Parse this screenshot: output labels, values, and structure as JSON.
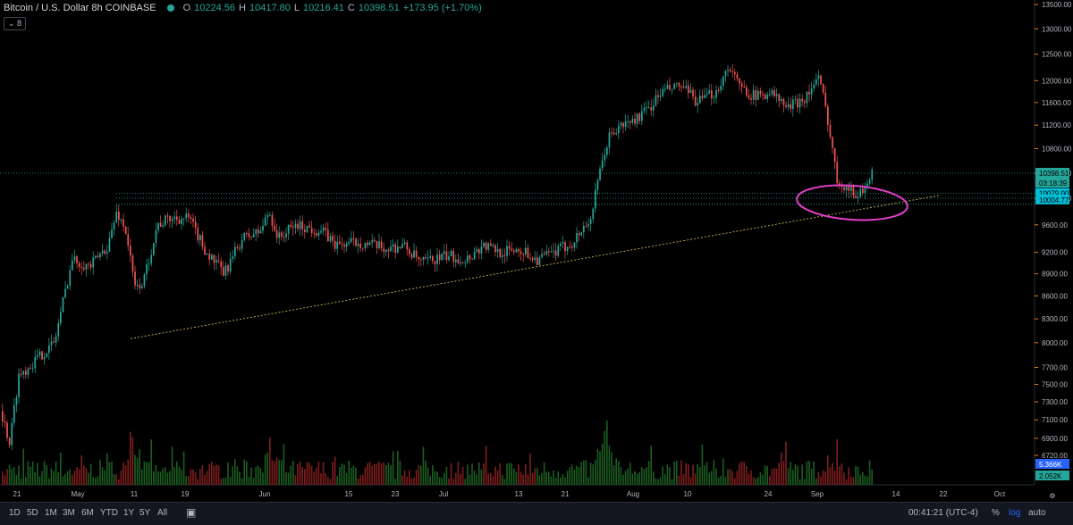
{
  "header": {
    "title": "Bitcoin / U.S. Dollar  8h  COINBASE",
    "open_label": "O",
    "open": "10224.56",
    "high_label": "H",
    "high": "10417.80",
    "low_label": "L",
    "low": "10216.41",
    "close_label": "C",
    "close": "10398.51",
    "change": "+173.95 (+1.70%)",
    "indicator_toggle": "8"
  },
  "price_labels": {
    "last_price": "10398.51",
    "countdown": "03:18:39",
    "level_a": "10079.00",
    "level_b": "10004.77",
    "volume_a": "5.366K",
    "volume_b": "2.052K"
  },
  "colors": {
    "up": "#26a69a",
    "down": "#ef5350",
    "vol_up": "#1b5e20",
    "vol_down": "#7f1d1d",
    "trendline": "#c9b458",
    "annotation": "#e040c8",
    "level": "#26a69a"
  },
  "toolbar": {
    "ranges": [
      "1D",
      "5D",
      "1M",
      "3M",
      "6M",
      "YTD",
      "1Y",
      "5Y",
      "All"
    ],
    "clock": "00:41:21 (UTC-4)",
    "percent": "%",
    "log": "log",
    "auto": "auto"
  },
  "chart_data": {
    "type": "candlestick",
    "symbol": "Bitcoin / U.S. Dollar",
    "interval": "8h",
    "exchange": "COINBASE",
    "x_ticks": [
      "21",
      "May",
      "11",
      "19",
      "Jun",
      "15",
      "23",
      "Jul",
      "13",
      "21",
      "Aug",
      "10",
      "24",
      "Sep",
      "14",
      "22",
      "Oct"
    ],
    "y_ticks": [
      6720,
      6900,
      7100,
      7300,
      7500,
      7700,
      8000,
      8300,
      8600,
      8900,
      9200,
      9600,
      10000,
      10400,
      10800,
      11200,
      11600,
      12000,
      12500,
      13000,
      13500
    ],
    "ylim": [
      6700,
      13600
    ],
    "y_scale": "log",
    "series": [
      {
        "name": "price_path",
        "points": [
          [
            0,
            7200
          ],
          [
            10,
            6850
          ],
          [
            20,
            7600
          ],
          [
            40,
            7800
          ],
          [
            60,
            8000
          ],
          [
            80,
            9100
          ],
          [
            100,
            9000
          ],
          [
            120,
            9300
          ],
          [
            130,
            9800
          ],
          [
            140,
            9500
          ],
          [
            150,
            8700
          ],
          [
            160,
            8800
          ],
          [
            175,
            9600
          ],
          [
            190,
            9700
          ],
          [
            210,
            9700
          ],
          [
            230,
            9200
          ],
          [
            250,
            8900
          ],
          [
            270,
            9400
          ],
          [
            290,
            9500
          ],
          [
            300,
            9800
          ],
          [
            310,
            9400
          ],
          [
            330,
            9600
          ],
          [
            360,
            9500
          ],
          [
            375,
            9300
          ],
          [
            400,
            9350
          ],
          [
            430,
            9250
          ],
          [
            450,
            9300
          ],
          [
            470,
            9050
          ],
          [
            500,
            9150
          ],
          [
            520,
            9100
          ],
          [
            540,
            9300
          ],
          [
            560,
            9200
          ],
          [
            580,
            9250
          ],
          [
            600,
            9100
          ],
          [
            620,
            9200
          ],
          [
            640,
            9350
          ],
          [
            660,
            9700
          ],
          [
            670,
            10400
          ],
          [
            680,
            11000
          ],
          [
            695,
            11200
          ],
          [
            710,
            11300
          ],
          [
            725,
            11500
          ],
          [
            740,
            11800
          ],
          [
            760,
            11900
          ],
          [
            780,
            11600
          ],
          [
            800,
            11800
          ],
          [
            815,
            12300
          ],
          [
            825,
            11900
          ],
          [
            845,
            11700
          ],
          [
            860,
            11800
          ],
          [
            880,
            11500
          ],
          [
            900,
            11700
          ],
          [
            915,
            12050
          ],
          [
            925,
            11300
          ],
          [
            935,
            10300
          ],
          [
            945,
            10200
          ],
          [
            955,
            10050
          ],
          [
            965,
            10150
          ],
          [
            975,
            10400
          ]
        ]
      }
    ],
    "volume_peaks": [
      {
        "x": 147,
        "value": "high"
      },
      {
        "x": 300,
        "value": "medium"
      },
      {
        "x": 676,
        "value": "high"
      },
      {
        "x": 930,
        "value": "medium"
      }
    ],
    "trendline": {
      "from": {
        "date": "May 11",
        "price": 8050
      },
      "to": {
        "date": "Sep 22",
        "price": 10050
      }
    },
    "horizontal_levels": [
      10398.51,
      10079.0,
      10004.77,
      9910
    ],
    "annotation": "pink ellipse around early-September consolidation"
  }
}
